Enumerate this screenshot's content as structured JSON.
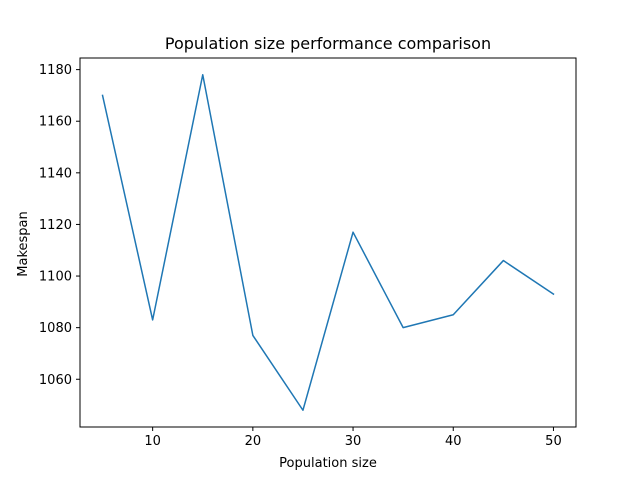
{
  "chart_data": {
    "type": "line",
    "title": "Population size performance comparison",
    "xlabel": "Population size",
    "ylabel": "Makespan",
    "xlim": [
      2.75,
      52.25
    ],
    "ylim": [
      1041.5,
      1184.5
    ],
    "xticks": [
      10,
      20,
      30,
      40,
      50
    ],
    "yticks": [
      1060,
      1080,
      1100,
      1120,
      1140,
      1160,
      1180
    ],
    "grid": false,
    "series": [
      {
        "color": "#1f77b4",
        "x": [
          5,
          10,
          15,
          20,
          25,
          30,
          35,
          40,
          45,
          50
        ],
        "values": [
          1170,
          1083,
          1178,
          1077,
          1048,
          1117,
          1080,
          1085,
          1106,
          1093
        ]
      }
    ]
  }
}
